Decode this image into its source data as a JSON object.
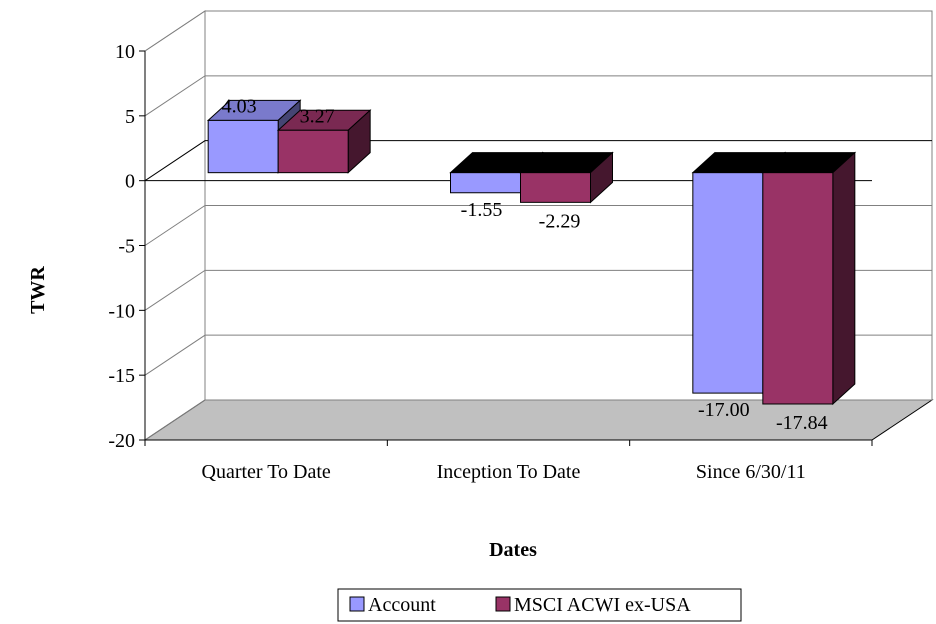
{
  "chart_data": {
    "type": "bar",
    "title": "",
    "xlabel": "Dates",
    "ylabel": "TWR",
    "categories": [
      "Quarter To Date",
      "Inception To Date",
      "Since 6/30/11"
    ],
    "series": [
      {
        "name": "Account",
        "values": [
          4.03,
          -1.55,
          -17.0
        ],
        "labels": [
          "4.03",
          "-1.55",
          "-17.00"
        ],
        "color": "#9999ff"
      },
      {
        "name": "MSCI ACWI ex-USA",
        "values": [
          3.27,
          -2.29,
          -17.84
        ],
        "labels": [
          "3.27",
          "-2.29",
          "-17.84"
        ],
        "color": "#993366"
      }
    ],
    "yticks": [
      "10",
      "5",
      "0",
      "-5",
      "-10",
      "-15",
      "-20"
    ],
    "ylim": [
      -20,
      10
    ],
    "grid": true,
    "three_d": true,
    "legend_position": "bottom"
  }
}
